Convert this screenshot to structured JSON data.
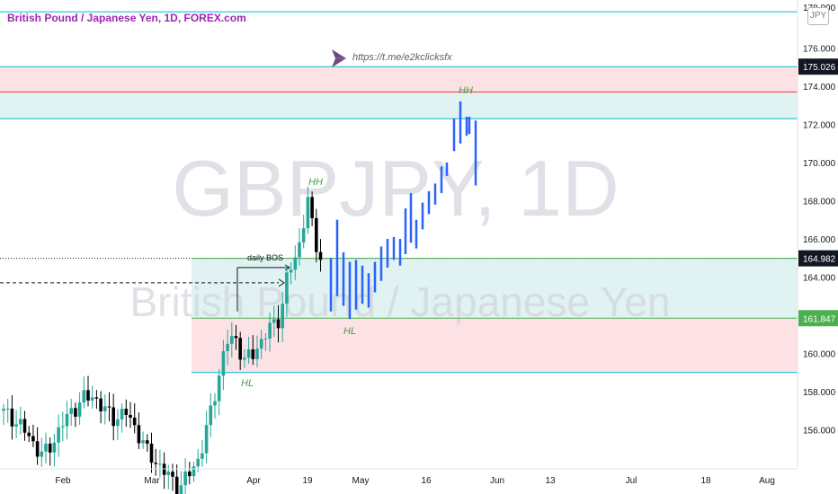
{
  "header": {
    "title": "British Pound / Japanese Yen, 1D, FOREX.com",
    "currency": "JPY",
    "link": "https://t.me/e2kclicksfx"
  },
  "watermark": {
    "symbol": "GBPJPY, 1D",
    "name": "British Pound / Japanese Yen"
  },
  "price_scale": {
    "ticks": [
      "176.000",
      "174.000",
      "172.000",
      "170.000",
      "168.000",
      "166.000",
      "164.000",
      "162.000",
      "160.000",
      "158.000",
      "156.000"
    ],
    "top_partial": "178.000",
    "labels": [
      {
        "text": "175.026",
        "value": 175.026,
        "bg": "#131722",
        "fg": "#ffffff"
      },
      {
        "text": "164.982",
        "value": 164.982,
        "bg": "#131722",
        "fg": "#ffffff"
      },
      {
        "text": "161.847",
        "value": 161.847,
        "bg": "#4caf50",
        "fg": "#ffffff"
      }
    ]
  },
  "time_scale": {
    "ticks": [
      "Feb",
      "Mar",
      "Apr",
      "19",
      "May",
      "16",
      "Jun",
      "13",
      "Jul",
      "18",
      "Aug"
    ]
  },
  "annotations": {
    "hh1": "HH",
    "hh2": "HH",
    "hl1": "HL",
    "hl2": "HL",
    "bos": "daily BOS"
  },
  "colors": {
    "up": "#26a69a",
    "down": "#000000",
    "projection": "#2962ff",
    "resistance": "#f23645",
    "support": "#4caf50",
    "zone_line": "#00bcd4",
    "annotation": "#43a047"
  },
  "chart_data": {
    "type": "candlestick",
    "symbol": "GBPJPY",
    "timeframe": "1D",
    "ylim": [
      154.0,
      178.5
    ],
    "levels": [
      {
        "label": "175.026",
        "value": 175.026
      },
      {
        "label": "164.982",
        "value": 164.982
      },
      {
        "label": "161.847",
        "value": 161.847
      },
      {
        "value": 173.7
      },
      {
        "value": 172.3
      },
      {
        "value": 177.9
      },
      {
        "value": 159.0
      }
    ],
    "zones": [
      {
        "from": 172.3,
        "to": 175.026,
        "fill_top": "#fde2e5",
        "fill_bottom": "#e0f2f1"
      },
      {
        "from": 159.0,
        "to": 164.982,
        "fill_top": "#e0f2f1",
        "fill_bottom": "#fde2e5"
      }
    ]
  }
}
